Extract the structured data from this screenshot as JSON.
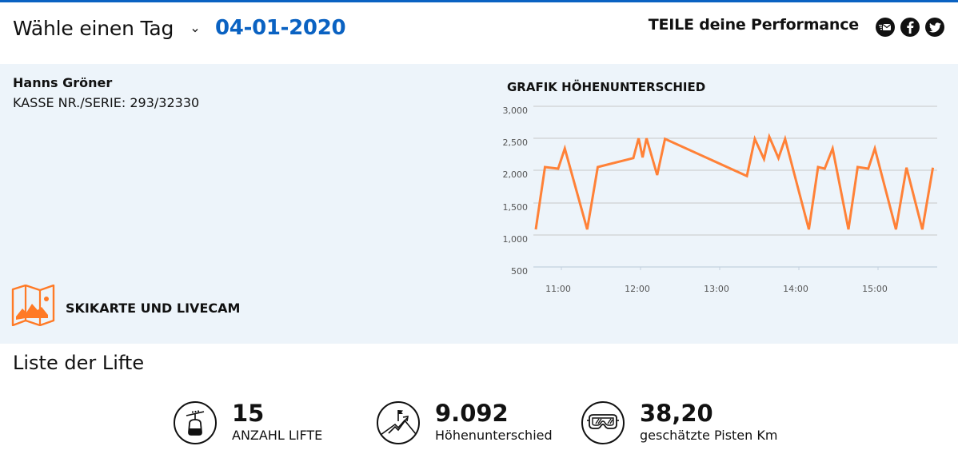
{
  "header": {
    "day_label": "Wähle einen Tag",
    "selected_date": "04-01-2020",
    "share_label": "TEILE deine Performance",
    "share_icons": [
      "email-icon",
      "facebook-icon",
      "twitter-icon"
    ],
    "accent_color": "#0a62c2"
  },
  "user": {
    "name": "Hanns Gröner",
    "kasse": "KASSE NR./SERIE: 293/32330"
  },
  "skimap": {
    "label": "SKIKARTE UND LIVECAM",
    "icon": "map-icon"
  },
  "chart": {
    "title": "GRAFIK HÖHENUNTERSCHIED",
    "line_color": "#ff8137"
  },
  "chart_data": {
    "type": "line",
    "title": "GRAFIK HÖHENUNTERSCHIED",
    "xlabel": "",
    "ylabel": "",
    "ylim": [
      500,
      3000
    ],
    "yticks": [
      "3,000",
      "2,500",
      "2,000",
      "1,500",
      "1,000",
      "500"
    ],
    "xticks": [
      "11:00",
      "12:00",
      "13:00",
      "14:00",
      "15:00"
    ],
    "grid": true,
    "legend": "none",
    "x": [
      "10:43",
      "10:50",
      "11:00",
      "11:05",
      "11:22",
      "11:30",
      "11:57",
      "12:01",
      "12:04",
      "12:07",
      "12:15",
      "12:21",
      "13:23",
      "13:29",
      "13:36",
      "13:40",
      "13:47",
      "13:52",
      "14:10",
      "14:17",
      "14:22",
      "14:28",
      "14:40",
      "14:47",
      "14:55",
      "15:00",
      "15:16",
      "15:24",
      "15:36",
      "15:44"
    ],
    "series": [
      {
        "name": "Höhenunterschied",
        "values": [
          1075,
          2050,
          2025,
          2340,
          1075,
          2050,
          2190,
          2500,
          2200,
          2500,
          1925,
          2490,
          1910,
          2490,
          2175,
          2525,
          2190,
          2490,
          1075,
          2050,
          2025,
          2340,
          1075,
          2050,
          2025,
          2340,
          1075,
          2040,
          1075,
          2040
        ]
      }
    ]
  },
  "lifts": {
    "title": "Liste der Lifte"
  },
  "stats": [
    {
      "value": "15",
      "label": "ANZAHL LIFTE",
      "icon": "gondola-icon"
    },
    {
      "value": "9.092",
      "label": "Höhenunterschied",
      "icon": "mountain-climb-icon"
    },
    {
      "value": "38,20",
      "label": "geschätzte Pisten Km",
      "icon": "ski-goggles-icon"
    }
  ]
}
